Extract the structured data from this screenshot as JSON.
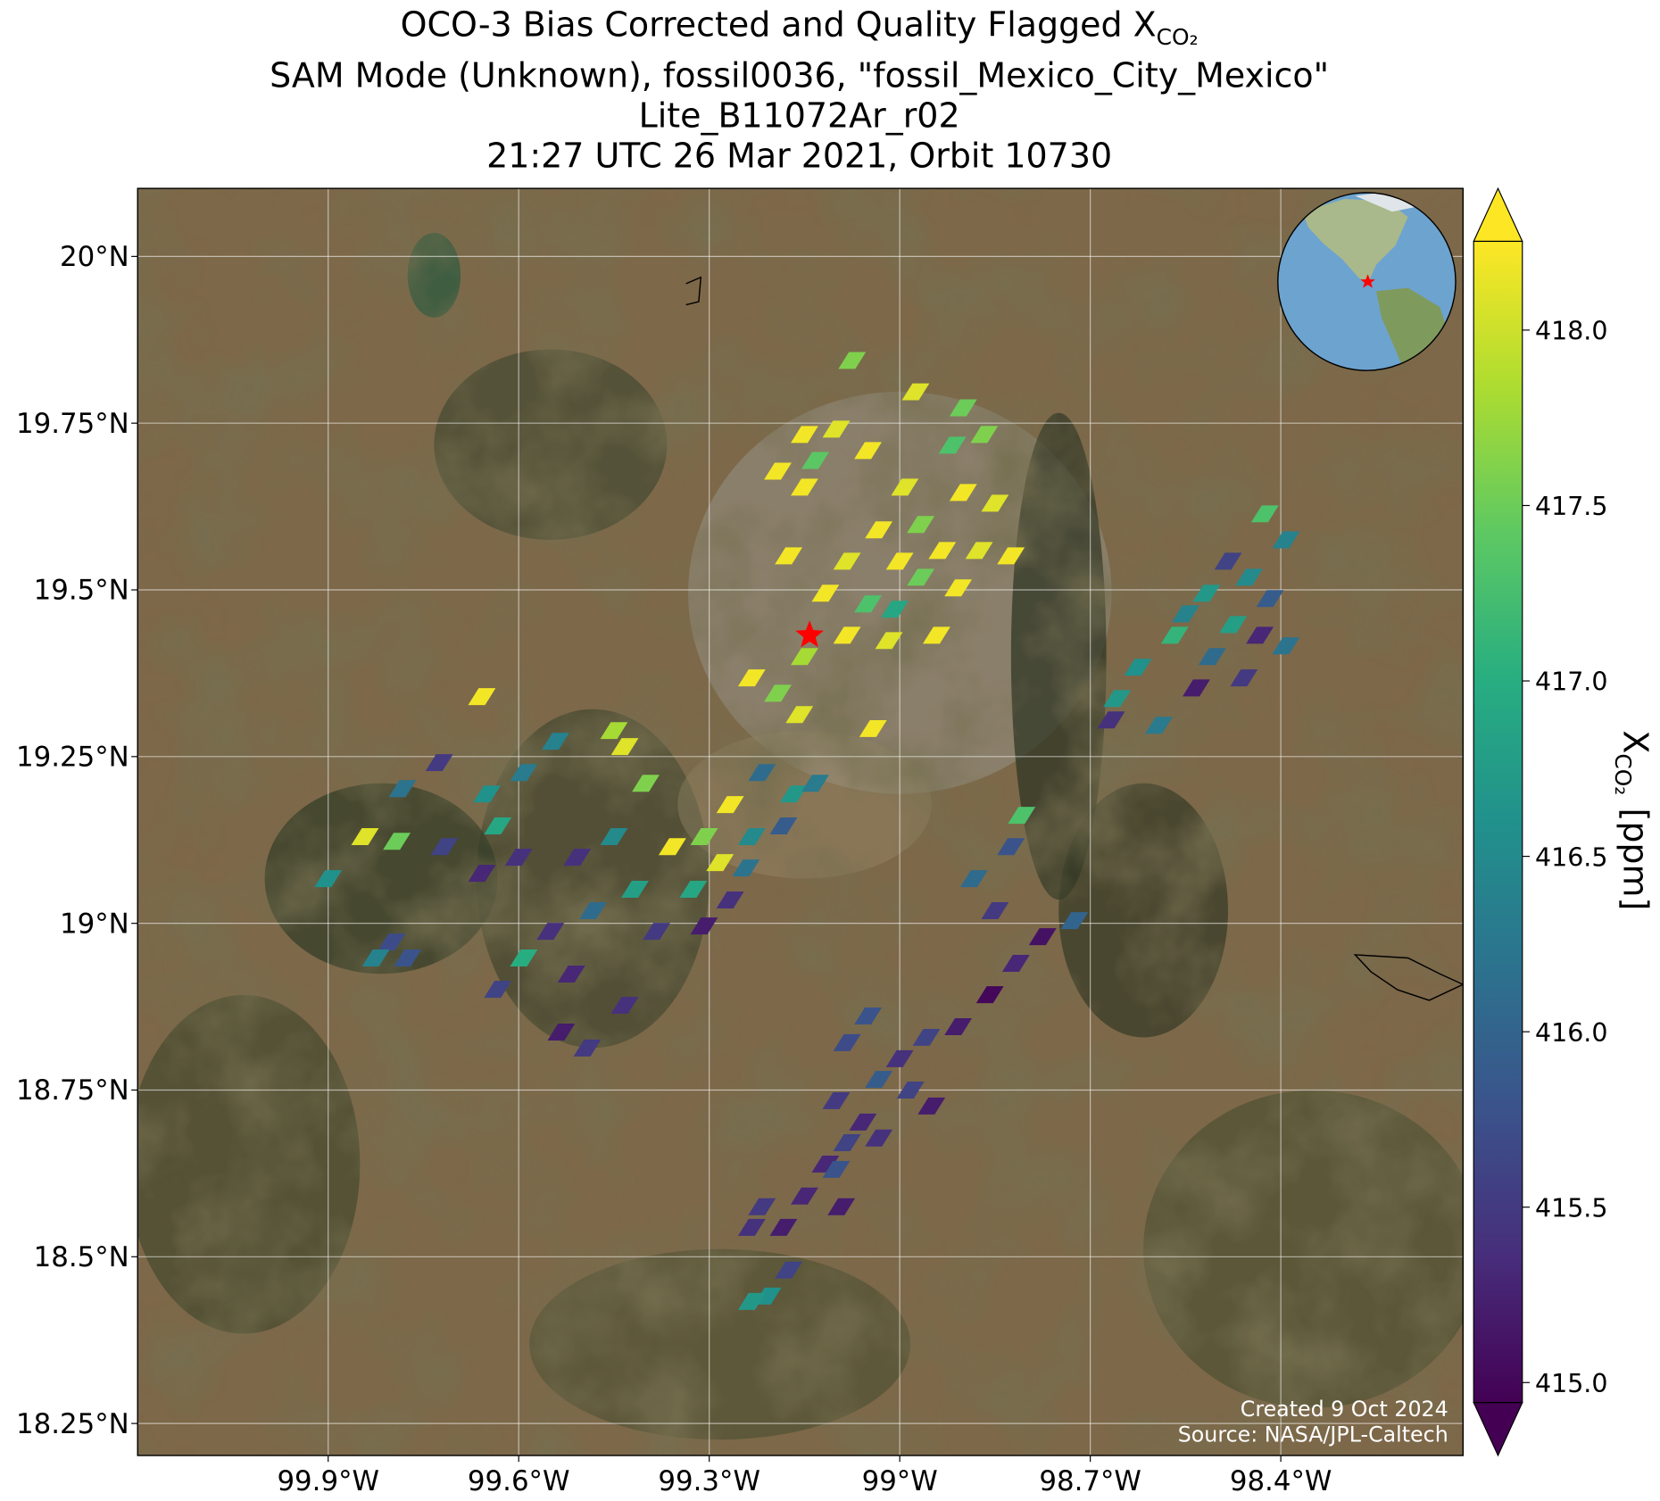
{
  "chart_data": {
    "type": "map",
    "title": {
      "text": "OCO-3 Bias Corrected and Quality Flagged X",
      "subscript": "CO₂"
    },
    "subtitle_lines": [
      "SAM Mode (Unknown), fossil0036, \"fossil_Mexico_City_Mexico\"",
      "Lite_B11072Ar_r02",
      "21:27 UTC 26 Mar 2021, Orbit 10730"
    ],
    "xlim": [
      -100.2,
      -98.113
    ],
    "ylim": [
      18.202,
      20.102
    ],
    "xticks": [
      {
        "value": -99.9,
        "label": "99.9°W"
      },
      {
        "value": -99.6,
        "label": "99.6°W"
      },
      {
        "value": -99.3,
        "label": "99.3°W"
      },
      {
        "value": -99.0,
        "label": "99°W"
      },
      {
        "value": -98.7,
        "label": "98.7°W"
      },
      {
        "value": -98.4,
        "label": "98.4°W"
      }
    ],
    "yticks": [
      {
        "value": 18.25,
        "label": "18.25°N"
      },
      {
        "value": 18.5,
        "label": "18.5°N"
      },
      {
        "value": 18.75,
        "label": "18.75°N"
      },
      {
        "value": 19.0,
        "label": "19°N"
      },
      {
        "value": 19.25,
        "label": "19.25°N"
      },
      {
        "value": 19.5,
        "label": "19.5°N"
      },
      {
        "value": 19.75,
        "label": "19.75°N"
      },
      {
        "value": 20.0,
        "label": "20°N"
      }
    ],
    "grid": true,
    "colormap": "viridis",
    "clim": [
      414.943,
      418.253
    ],
    "colorbar_ticks": [
      {
        "value": 415.0,
        "label": "415.0"
      },
      415.5,
      {
        "value": 416.0,
        "label": "416.0"
      },
      416.5,
      {
        "value": 417.0,
        "label": "417.0"
      },
      417.5,
      {
        "value": 418.0,
        "label": "418.0"
      }
    ],
    "colorbar_label": {
      "text": "X",
      "subscript": "CO₂",
      "unit": "[ppm]"
    },
    "target": {
      "lon": -99.142,
      "lat": 19.432,
      "color": "#ff0000"
    },
    "credits": [
      "Created 9 Oct 2024",
      "Source: NASA/JPL-Caltech"
    ],
    "lon": [
      -99.075,
      -98.975,
      -98.9,
      -99.15,
      -99.1,
      -99.05,
      -99.133,
      -98.917,
      -98.867,
      -99.192,
      -99.15,
      -98.992,
      -98.9,
      -98.85,
      -99.033,
      -98.967,
      -98.933,
      -99.175,
      -99.083,
      -99.0,
      -98.875,
      -98.825,
      -99.117,
      -99.05,
      -98.967,
      -98.908,
      -99.083,
      -99.017,
      -98.942,
      -99.15,
      -99.233,
      -99.192,
      -99.158,
      -99.042,
      -99.008,
      -99.658,
      -98.425,
      -98.392,
      -98.483,
      -98.45,
      -98.517,
      -98.417,
      -98.55,
      -98.475,
      -98.567,
      -98.433,
      -98.508,
      -98.625,
      -98.458,
      -98.533,
      -98.658,
      -98.667,
      -98.592,
      -98.392,
      -99.45,
      -99.433,
      -99.542,
      -99.725,
      -99.592,
      -99.783,
      -99.65,
      -99.842,
      -99.792,
      -99.9,
      -99.717,
      -99.633,
      -99.6,
      -99.658,
      -99.4,
      -99.45,
      -99.508,
      -99.417,
      -99.483,
      -99.383,
      -99.55,
      -99.592,
      -99.633,
      -99.517,
      -99.433,
      -99.492,
      -99.533,
      -99.8,
      -99.825,
      -99.775,
      -99.358,
      -99.308,
      -99.267,
      -99.283,
      -99.217,
      -99.167,
      -99.233,
      -99.183,
      -99.325,
      -99.267,
      -99.133,
      -99.242,
      -99.308,
      -98.808,
      -98.825,
      -98.883,
      -98.85,
      -98.725,
      -98.775,
      -98.817,
      -98.858,
      -98.908,
      -98.958,
      -99.0,
      -99.05,
      -99.083,
      -99.033,
      -99.1,
      -99.058,
      -98.983,
      -98.95,
      -99.083,
      -99.117,
      -99.033,
      -99.1,
      -99.217,
      -99.183,
      -99.233,
      -99.15,
      -99.092,
      -99.175,
      -99.208,
      -99.233
    ],
    "lat": [
      19.844,
      19.797,
      19.773,
      19.733,
      19.741,
      19.709,
      19.694,
      19.717,
      19.733,
      19.678,
      19.654,
      19.654,
      19.646,
      19.63,
      19.59,
      19.598,
      19.559,
      19.551,
      19.543,
      19.543,
      19.559,
      19.551,
      19.495,
      19.479,
      19.519,
      19.503,
      19.432,
      19.424,
      19.432,
      19.4,
      19.368,
      19.345,
      19.313,
      19.292,
      19.471,
      19.34,
      19.614,
      19.575,
      19.543,
      19.519,
      19.495,
      19.487,
      19.464,
      19.448,
      19.432,
      19.432,
      19.4,
      19.384,
      19.368,
      19.353,
      19.337,
      19.305,
      19.297,
      19.416,
      19.289,
      19.265,
      19.273,
      19.241,
      19.226,
      19.202,
      19.194,
      19.13,
      19.123,
      19.067,
      19.115,
      19.146,
      19.099,
      19.075,
      19.21,
      19.13,
      19.099,
      19.051,
      19.019,
      18.988,
      18.988,
      18.948,
      18.901,
      18.924,
      18.877,
      18.813,
      18.837,
      18.972,
      18.948,
      18.948,
      19.115,
      19.13,
      19.178,
      19.091,
      19.226,
      19.194,
      19.13,
      19.146,
      19.051,
      19.035,
      19.21,
      19.083,
      18.996,
      19.162,
      19.115,
      19.067,
      19.019,
      19.004,
      18.98,
      18.94,
      18.893,
      18.845,
      18.829,
      18.797,
      18.861,
      18.821,
      18.766,
      18.734,
      18.702,
      18.75,
      18.726,
      18.671,
      18.639,
      18.678,
      18.631,
      18.575,
      18.544,
      18.544,
      18.591,
      18.575,
      18.48,
      18.441,
      18.433
    ],
    "values": [
      417.6,
      418.1,
      417.5,
      418.2,
      418.1,
      418.2,
      417.4,
      417.3,
      417.6,
      418.2,
      418.2,
      418.1,
      418.2,
      418.1,
      418.2,
      417.6,
      418.2,
      418.2,
      418.1,
      418.2,
      418.1,
      418.2,
      418.2,
      417.3,
      417.5,
      418.2,
      418.2,
      418.1,
      418.2,
      417.8,
      418.2,
      417.6,
      418.1,
      418.2,
      416.9,
      418.2,
      417.3,
      416.4,
      415.6,
      416.5,
      416.7,
      415.9,
      416.4,
      416.8,
      417.1,
      415.3,
      416.1,
      416.6,
      415.5,
      415.2,
      416.7,
      415.4,
      416.3,
      416.2,
      417.8,
      418.1,
      416.4,
      415.5,
      416.3,
      416.2,
      416.6,
      418.1,
      417.5,
      416.6,
      415.6,
      416.9,
      415.4,
      415.3,
      417.6,
      416.5,
      415.4,
      416.8,
      416.1,
      415.5,
      415.4,
      417.0,
      415.6,
      415.3,
      415.4,
      415.5,
      415.2,
      415.7,
      416.4,
      415.8,
      418.2,
      417.6,
      418.2,
      418.1,
      416.1,
      416.7,
      416.5,
      415.9,
      416.9,
      415.4,
      416.3,
      416.2,
      415.2,
      417.3,
      415.8,
      416.1,
      415.5,
      416.0,
      415.1,
      415.3,
      415.0,
      415.2,
      415.6,
      415.4,
      415.8,
      415.7,
      415.9,
      415.5,
      415.3,
      415.6,
      415.2,
      415.6,
      415.3,
      415.4,
      415.8,
      415.5,
      415.2,
      415.4,
      415.3,
      415.2,
      415.6,
      416.6,
      416.7
    ]
  }
}
